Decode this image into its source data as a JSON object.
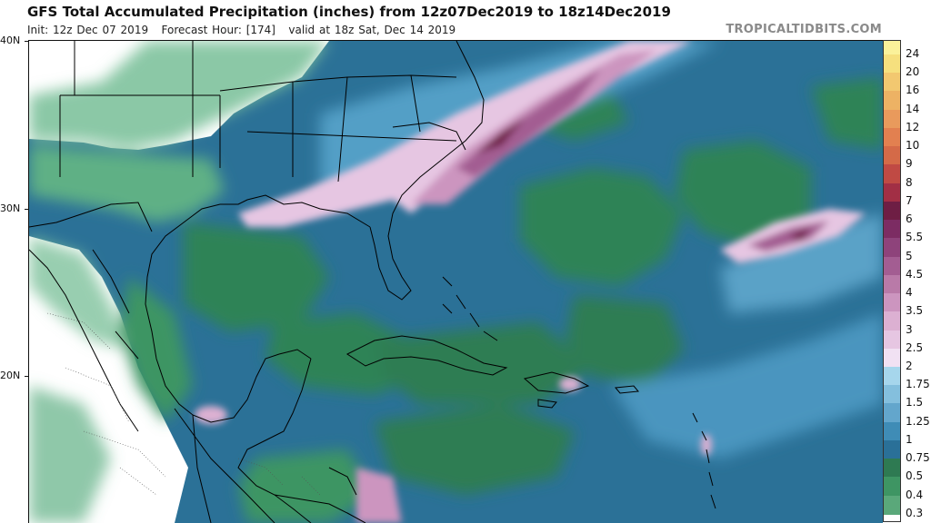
{
  "title": "GFS Total Accumulated Precipitation (inches) from 12z07Dec2019 to 18z14Dec2019",
  "subtitle": {
    "init": "Init: 12z Dec 07 2019",
    "forecast_hour": "Forecast Hour: [174]",
    "valid": "valid at 18z Sat, Dec 14 2019"
  },
  "brand": "TROPICALTIDBITS.COM",
  "latitude_labels": [
    "40N",
    "30N",
    "20N"
  ],
  "legend": {
    "labels": [
      "24",
      "20",
      "16",
      "14",
      "12",
      "10",
      "9",
      "8",
      "7",
      "6",
      "5.5",
      "5",
      "4.5",
      "4",
      "3.5",
      "3",
      "2.5",
      "2",
      "1.75",
      "1.5",
      "1.25",
      "1",
      "0.75",
      "0.5",
      "0.4",
      "0.3"
    ],
    "colors": [
      "#fbf29a",
      "#f6e07e",
      "#f2c870",
      "#edb264",
      "#e99a5c",
      "#e28050",
      "#d46a48",
      "#c04a44",
      "#a22f45",
      "#6e1e44",
      "#7c2c63",
      "#8e437b",
      "#a35d92",
      "#b97aa8",
      "#cc95bf",
      "#dcb0d2",
      "#e6c6e2",
      "#f1e1f3",
      "#a6d6ec",
      "#84bfdd",
      "#63a6cc",
      "#3f8cb6",
      "#2a7098",
      "#2e7a52",
      "#3e9563",
      "#5aa87a"
    ]
  },
  "colors": {
    "ocean": "#2a6f93",
    "land_base": "#ffffff",
    "borders": "#000000"
  }
}
